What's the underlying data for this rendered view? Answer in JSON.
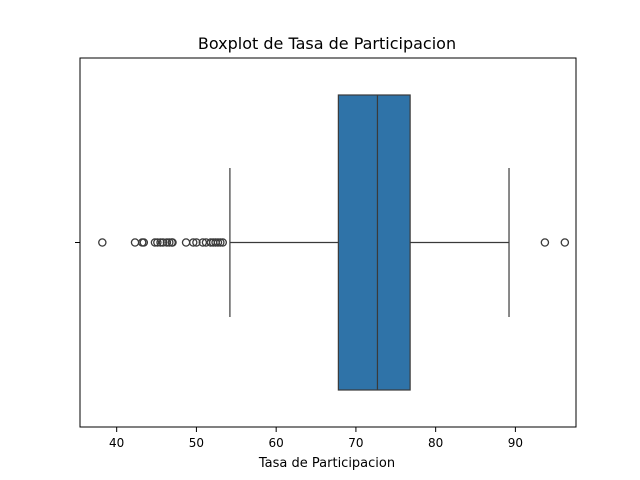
{
  "chart_data": {
    "type": "boxplot",
    "title": "Boxplot de Tasa de Participacion",
    "xlabel": "Tasa de Participacion",
    "ylabel": "",
    "orientation": "horizontal",
    "xlim": [
      35.4,
      97.6
    ],
    "xticks": [
      40,
      50,
      60,
      70,
      80,
      90
    ],
    "xtick_labels": [
      "40",
      "50",
      "60",
      "70",
      "80",
      "90"
    ],
    "grid": false,
    "box": {
      "q1": 67.8,
      "median": 72.7,
      "q3": 76.8,
      "whisker_low": 54.2,
      "whisker_high": 89.2,
      "color": "#2f73a8"
    },
    "outliers": [
      38.2,
      42.3,
      43.2,
      43.4,
      44.8,
      45.1,
      45.5,
      45.8,
      46.3,
      46.6,
      46.9,
      47.0,
      48.7,
      49.6,
      50.0,
      50.8,
      51.2,
      51.8,
      52.1,
      52.4,
      52.7,
      53.0,
      53.3,
      93.7,
      96.2
    ]
  }
}
